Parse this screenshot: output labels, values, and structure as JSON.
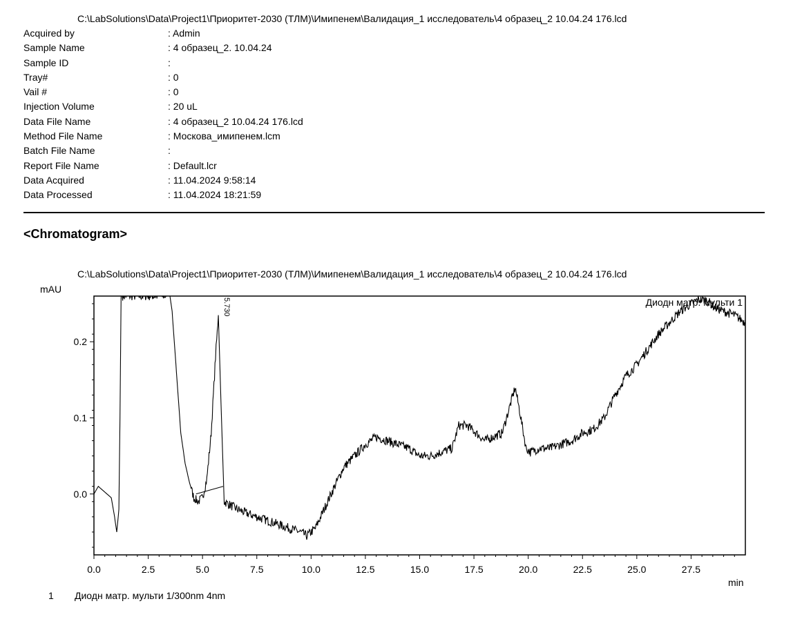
{
  "header": {
    "file_path": "C:\\LabSolutions\\Data\\Project1\\Приоритет-2030 (ТЛМ)\\Имипенем\\Валидация_1 исследователь\\4 образец_2 10.04.24   176.lcd"
  },
  "metadata": [
    {
      "label": "Acquired by",
      "value": ": Admin"
    },
    {
      "label": "Sample Name",
      "value": ": 4 образец_2. 10.04.24"
    },
    {
      "label": "Sample ID",
      "value": ":"
    },
    {
      "label": "Tray#",
      "value": ": 0"
    },
    {
      "label": "Vail #",
      "value": ": 0"
    },
    {
      "label": "Injection Volume",
      "value": ": 20 uL"
    },
    {
      "label": "Data File Name",
      "value": ": 4 образец_2 10.04.24   176.lcd"
    },
    {
      "label": "Method File Name",
      "value": ": Москова_имипенем.lcm"
    },
    {
      "label": "Batch File Name",
      "value": ":"
    },
    {
      "label": "Report File Name",
      "value": ": Default.lcr"
    },
    {
      "label": "Data Acquired",
      "value": ": 11.04.2024 9:58:14"
    },
    {
      "label": "Data Processed",
      "value": ": 11.04.2024 18:21:59"
    }
  ],
  "section_title": "<Chromatogram>",
  "chart_data": {
    "type": "line",
    "title": "C:\\LabSolutions\\Data\\Project1\\Приоритет-2030 (ТЛМ)\\Имипенем\\Валидация_1 исследователь\\4 образец_2 10.04.24   176.lcd",
    "xlabel": "min",
    "ylabel": "mAU",
    "xlim": [
      0,
      30
    ],
    "ylim": [
      -0.08,
      0.26
    ],
    "x_ticks": [
      0.0,
      2.5,
      5.0,
      7.5,
      10.0,
      12.5,
      15.0,
      17.5,
      20.0,
      22.5,
      25.0,
      27.5
    ],
    "x_tick_labels": [
      "0.0",
      "2.5",
      "5.0",
      "7.5",
      "10.0",
      "12.5",
      "15.0",
      "17.5",
      "20.0",
      "22.5",
      "25.0",
      "27.5"
    ],
    "y_ticks": [
      0.0,
      0.1,
      0.2
    ],
    "y_tick_labels": [
      "0.0",
      "0.1",
      "0.2"
    ],
    "grid": false,
    "trace_label": "Диодн матр. мульти 1",
    "series": [
      {
        "x": [
          0.0,
          0.2,
          0.4,
          0.6,
          0.8,
          0.95,
          1.05,
          1.15,
          1.2,
          1.25,
          1.3,
          3.5,
          3.6,
          3.8,
          4.0,
          4.2,
          4.4,
          4.6,
          4.8,
          5.0,
          5.2,
          5.4,
          5.6,
          5.73,
          5.85,
          6.0,
          6.3,
          6.6,
          7.0,
          7.5,
          8.0,
          8.5,
          9.0,
          9.5,
          9.8,
          10.2,
          10.6,
          11.0,
          11.5,
          12.0,
          12.5,
          13.0,
          13.5,
          14.0,
          14.5,
          15.0,
          15.5,
          16.0,
          16.5,
          16.8,
          17.2,
          17.6,
          18.0,
          18.4,
          18.8,
          19.1,
          19.4,
          19.6,
          19.9,
          20.1,
          20.5,
          21.0,
          21.5,
          22.0,
          22.5,
          23.0,
          23.5,
          24.0,
          24.5,
          25.0,
          25.5,
          26.0,
          26.5,
          27.0,
          27.5,
          27.8,
          28.2,
          28.6,
          29.0,
          29.5,
          30.0
        ],
        "y": [
          0.0,
          0.01,
          0.005,
          0.0,
          -0.005,
          -0.03,
          -0.05,
          -0.02,
          0.1,
          0.26,
          0.26,
          0.26,
          0.24,
          0.16,
          0.08,
          0.04,
          0.015,
          -0.005,
          -0.01,
          -0.005,
          0.02,
          0.08,
          0.18,
          0.235,
          0.12,
          -0.01,
          -0.015,
          -0.02,
          -0.025,
          -0.03,
          -0.035,
          -0.04,
          -0.045,
          -0.05,
          -0.055,
          -0.045,
          -0.02,
          0.005,
          0.035,
          0.05,
          0.065,
          0.075,
          0.07,
          0.065,
          0.06,
          0.05,
          0.05,
          0.055,
          0.06,
          0.09,
          0.09,
          0.08,
          0.07,
          0.075,
          0.08,
          0.11,
          0.14,
          0.11,
          0.06,
          0.055,
          0.06,
          0.06,
          0.065,
          0.07,
          0.08,
          0.085,
          0.1,
          0.13,
          0.155,
          0.17,
          0.19,
          0.21,
          0.225,
          0.24,
          0.25,
          0.255,
          0.255,
          0.245,
          0.24,
          0.235,
          0.225
        ]
      }
    ],
    "peaks": [
      {
        "rt": 5.73,
        "label": "5.730"
      }
    ],
    "baseline": {
      "x": [
        4.7,
        5.95
      ],
      "y": [
        0.0,
        0.01
      ]
    }
  },
  "legend": {
    "number": "1",
    "text": "Диодн матр. мульти 1/300nm 4nm"
  }
}
